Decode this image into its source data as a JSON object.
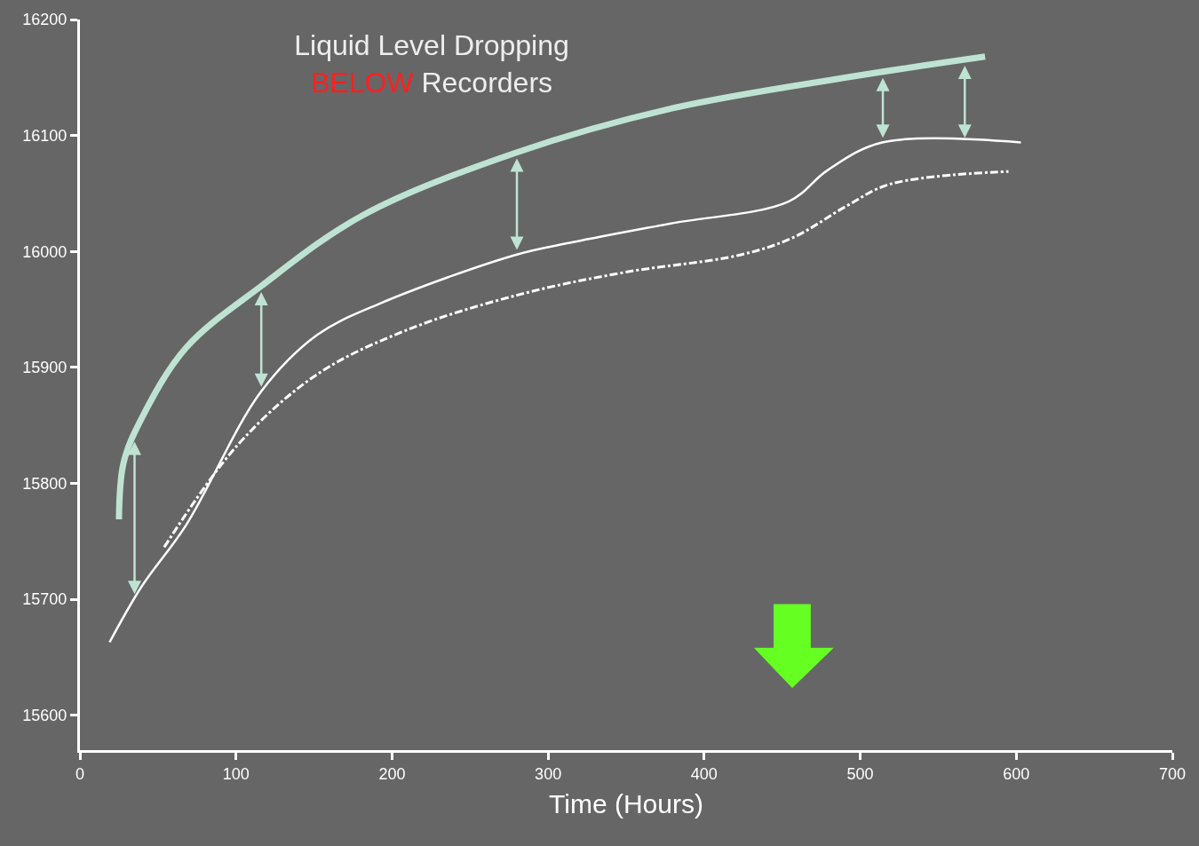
{
  "chart_data": {
    "type": "line",
    "title": "Liquid Level Dropping\nBELOW Recorders",
    "xlabel": "Time (Hours)",
    "xlim": [
      0,
      700
    ],
    "xticks": [
      0,
      100,
      200,
      300,
      400,
      500,
      600,
      700
    ],
    "ylim": [
      15570,
      16200
    ],
    "yticks": [
      15600,
      15700,
      15800,
      15900,
      16000,
      16100,
      16200
    ],
    "marker": "none",
    "series": [
      {
        "color": "#bfe3d3",
        "line_style": "solid",
        "x": [
          25,
          28,
          39.5,
          68,
          116,
          181,
          279,
          378,
          491,
          580
        ],
        "values": [
          15769,
          15818,
          15856,
          15917,
          15970,
          16031,
          16085,
          16123,
          16150,
          16168
        ]
      },
      {
        "color": "#ffffff",
        "line_style": "solid",
        "x": [
          19,
          39.5,
          68,
          116,
          152,
          192,
          279,
          316,
          378,
          454,
          479,
          514,
          603
        ],
        "values": [
          15663,
          15711,
          15764,
          15879,
          15928,
          15955,
          15997,
          16008,
          16024,
          16043,
          16070,
          16094,
          16094
        ]
      },
      {
        "color": "#ffffff",
        "line_style": "dashed",
        "x": [
          54,
          101,
          152,
          209,
          282,
          349,
          423,
          457,
          491,
          519,
          595
        ],
        "values": [
          15745,
          15833,
          15894,
          15932,
          15963,
          15982,
          15997,
          16012,
          16039,
          16058,
          16069
        ]
      }
    ]
  }
}
